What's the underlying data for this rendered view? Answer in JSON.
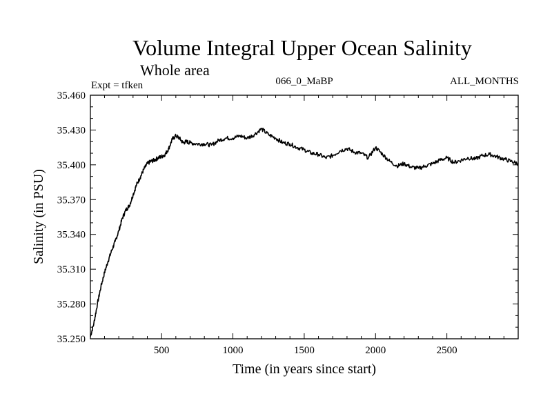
{
  "chart_data": {
    "type": "line",
    "title": "Volume Integral Upper Ocean Salinity",
    "subtitle": "Whole area",
    "header_left": "Expt = tfken",
    "header_center": "066_0_MaBP",
    "header_right": "ALL_MONTHS",
    "xlabel": "Time (in years since start)",
    "ylabel": "Salinity (in PSU)",
    "xlim": [
      1,
      3000
    ],
    "ylim": [
      35.25,
      35.46
    ],
    "x_ticks": [
      500,
      1000,
      1500,
      2000,
      2500
    ],
    "y_ticks": [
      35.25,
      35.28,
      35.31,
      35.34,
      35.37,
      35.4,
      35.43,
      35.46
    ],
    "x_tick_labels": [
      "500",
      "1000",
      "1500",
      "2000",
      "2500"
    ],
    "y_tick_labels": [
      "35.250",
      "35.280",
      "35.310",
      "35.340",
      "35.370",
      "35.400",
      "35.430",
      "35.460"
    ],
    "grid": false,
    "line_color": "#000000",
    "series": [
      {
        "x": [
          1,
          25,
          50,
          75,
          100,
          125,
          150,
          175,
          200,
          225,
          250,
          275,
          300,
          325,
          350,
          375,
          400,
          425,
          450,
          475,
          500,
          525,
          550,
          575,
          600,
          625,
          650,
          675,
          700,
          750,
          800,
          850,
          900,
          950,
          1000,
          1050,
          1100,
          1150,
          1200,
          1250,
          1300,
          1350,
          1400,
          1450,
          1500,
          1550,
          1600,
          1650,
          1700,
          1750,
          1800,
          1850,
          1900,
          1950,
          2000,
          2050,
          2100,
          2150,
          2200,
          2250,
          2300,
          2350,
          2400,
          2450,
          2500,
          2550,
          2600,
          2650,
          2700,
          2750,
          2800,
          2850,
          2900,
          2950,
          3000
        ],
        "y": [
          35.252,
          35.263,
          35.28,
          35.295,
          35.307,
          35.317,
          35.326,
          35.334,
          35.343,
          35.354,
          35.361,
          35.365,
          35.374,
          35.383,
          35.389,
          35.396,
          35.401,
          35.403,
          35.404,
          35.406,
          35.407,
          35.409,
          35.414,
          35.422,
          35.425,
          35.423,
          35.419,
          35.42,
          35.419,
          35.418,
          35.418,
          35.417,
          35.421,
          35.423,
          35.423,
          35.425,
          35.423,
          35.426,
          35.431,
          35.426,
          35.423,
          35.419,
          35.418,
          35.415,
          35.413,
          35.41,
          35.409,
          35.406,
          35.408,
          35.412,
          35.414,
          35.411,
          35.41,
          35.406,
          35.415,
          35.409,
          35.403,
          35.399,
          35.401,
          35.398,
          35.397,
          35.399,
          35.401,
          35.404,
          35.406,
          35.402,
          35.404,
          35.406,
          35.405,
          35.408,
          35.409,
          35.407,
          35.405,
          35.403,
          35.401
        ]
      }
    ]
  }
}
